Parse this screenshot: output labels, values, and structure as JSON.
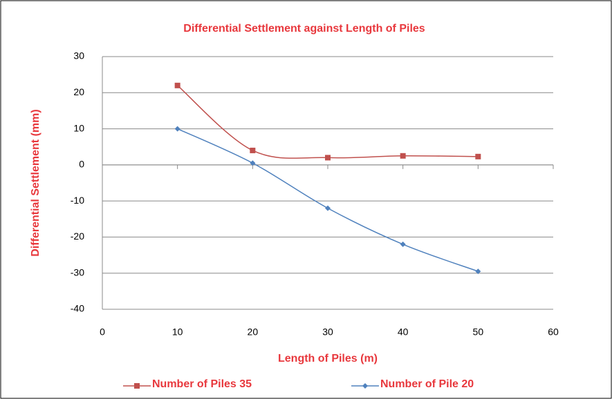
{
  "chart_data": {
    "type": "line",
    "title": "Differential Settlement against Length of Piles",
    "x_label": "Length of Piles (m)",
    "y_label": "Differential Settlement (mm)",
    "x": [
      10,
      20,
      30,
      40,
      50
    ],
    "series": [
      {
        "name": "Number of Piles 35",
        "color": "#c0504d",
        "marker": "square",
        "values": [
          22,
          4,
          2,
          2.5,
          2.3
        ]
      },
      {
        "name": "Number of Pile 20",
        "color": "#4f81bd",
        "marker": "diamond",
        "values": [
          10,
          0.5,
          -12,
          -22,
          -29.5
        ]
      }
    ],
    "xlim": [
      0,
      60
    ],
    "xticks": [
      0,
      10,
      20,
      30,
      40,
      50,
      60
    ],
    "ylim": [
      -40,
      30
    ],
    "yticks": [
      -40,
      -30,
      -20,
      -10,
      0,
      10,
      20,
      30
    ],
    "grid": true,
    "smooth": true,
    "legend": "bottom"
  }
}
